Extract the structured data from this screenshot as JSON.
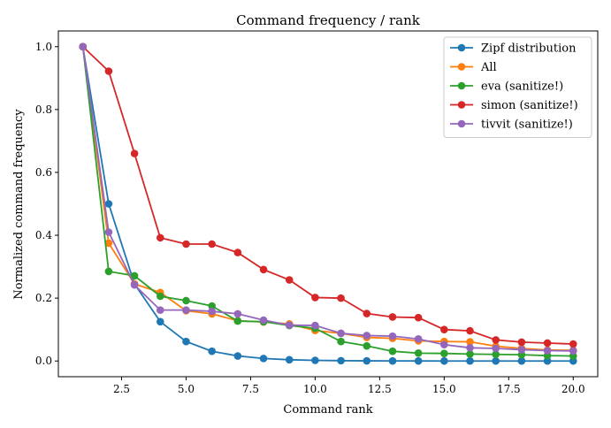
{
  "chart_data": {
    "type": "line",
    "title": "Command frequency / rank",
    "xlabel": "Command rank",
    "ylabel": "Normalized command frequency",
    "xlim": [
      0.05,
      20.95
    ],
    "ylim": [
      -0.05,
      1.05
    ],
    "xticks": [
      2.5,
      5.0,
      7.5,
      10.0,
      12.5,
      15.0,
      17.5,
      20.0
    ],
    "xtick_labels": [
      "2.5",
      "5.0",
      "7.5",
      "10.0",
      "12.5",
      "15.0",
      "17.5",
      "20.0"
    ],
    "yticks": [
      0.0,
      0.2,
      0.4,
      0.6,
      0.8,
      1.0
    ],
    "ytick_labels": [
      "0.0",
      "0.2",
      "0.4",
      "0.6",
      "0.8",
      "1.0"
    ],
    "grid": false,
    "legend_position": "top-right",
    "x": [
      1,
      2,
      3,
      4,
      5,
      6,
      7,
      8,
      9,
      10,
      11,
      12,
      13,
      14,
      15,
      16,
      17,
      18,
      19,
      20
    ],
    "series": [
      {
        "name": "Zipf distribution",
        "color": "#1f77b4",
        "values": [
          1.0,
          0.5,
          0.245,
          0.125,
          0.062,
          0.031,
          0.016,
          0.008,
          0.004,
          0.002,
          0.001,
          0.0005,
          0.0002,
          0.0001,
          0.0,
          0.0,
          0.0,
          0.0,
          0.0,
          0.0
        ]
      },
      {
        "name": "All",
        "color": "#ff7f0e",
        "values": [
          1.0,
          0.375,
          0.245,
          0.218,
          0.16,
          0.15,
          0.128,
          0.124,
          0.118,
          0.097,
          0.088,
          0.075,
          0.072,
          0.064,
          0.062,
          0.061,
          0.047,
          0.04,
          0.035,
          0.034
        ]
      },
      {
        "name": "eva (sanitize!)",
        "color": "#2ca02c",
        "values": [
          1.0,
          0.285,
          0.271,
          0.206,
          0.192,
          0.175,
          0.127,
          0.125,
          0.113,
          0.104,
          0.062,
          0.048,
          0.031,
          0.025,
          0.024,
          0.022,
          0.021,
          0.02,
          0.017,
          0.016
        ]
      },
      {
        "name": "simon (sanitize!)",
        "color": "#d62728",
        "values": [
          1.0,
          0.922,
          0.66,
          0.392,
          0.372,
          0.372,
          0.345,
          0.291,
          0.258,
          0.202,
          0.2,
          0.151,
          0.14,
          0.138,
          0.1,
          0.096,
          0.067,
          0.06,
          0.057,
          0.054
        ]
      },
      {
        "name": "tivvit (sanitize!)",
        "color": "#9467bd",
        "values": [
          1.0,
          0.41,
          0.242,
          0.162,
          0.162,
          0.158,
          0.15,
          0.13,
          0.114,
          0.113,
          0.088,
          0.081,
          0.079,
          0.07,
          0.052,
          0.042,
          0.04,
          0.036,
          0.033,
          0.032
        ]
      }
    ]
  }
}
